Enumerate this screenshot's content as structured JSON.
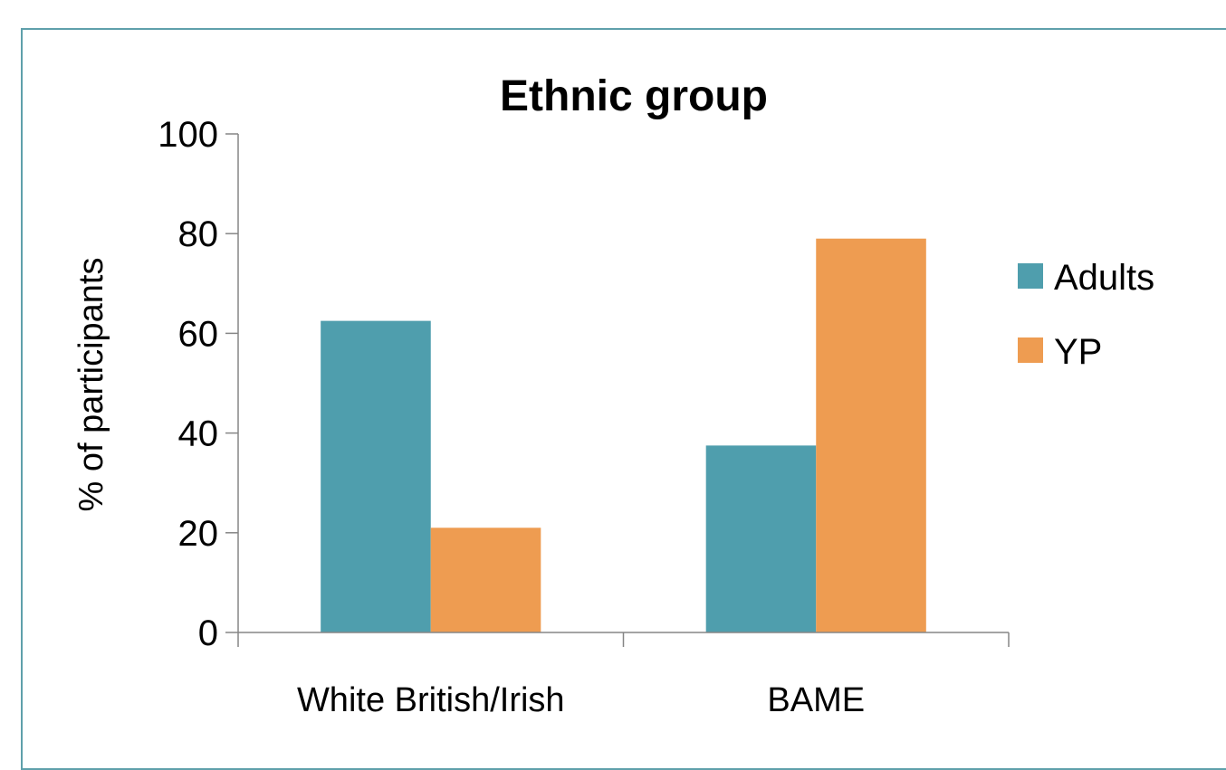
{
  "chart_data": {
    "type": "bar",
    "title": "Ethnic group",
    "xlabel": "",
    "ylabel": "% of participants",
    "ylim": [
      0,
      100
    ],
    "yticks": [
      0,
      20,
      40,
      60,
      80,
      100
    ],
    "categories": [
      "White British/Irish",
      "BAME"
    ],
    "series": [
      {
        "name": "Adults",
        "color": "#4f9ead",
        "values": [
          62.5,
          37.5
        ]
      },
      {
        "name": "YP",
        "color": "#ee9c51",
        "values": [
          21,
          79
        ]
      }
    ],
    "grid": false,
    "legend_position": "right"
  }
}
